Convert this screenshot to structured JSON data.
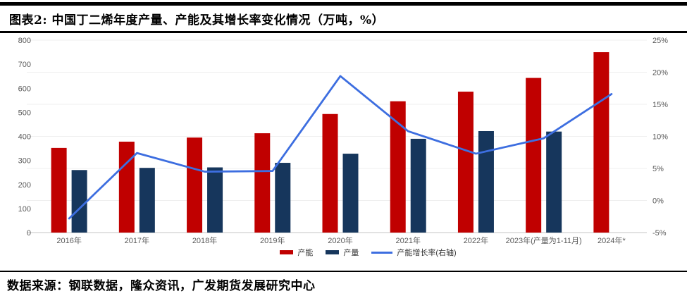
{
  "header": {
    "title": "图表2: 中国丁二烯年度产量、产能及其增长率变化情况（万吨，%）"
  },
  "footer": {
    "source": "数据来源：钢联数据，隆众资讯，广发期货发展研究中心"
  },
  "chart_data": {
    "type": "bar+line combo",
    "categories": [
      "2016年",
      "2017年",
      "2018年",
      "2019年",
      "2020年",
      "2021年",
      "2022年",
      "2023年(产量为1-11月)",
      "2024年*"
    ],
    "series": [
      {
        "name": "产能",
        "type": "bar",
        "axis": "left",
        "color": "#C00000",
        "values": [
          352,
          378,
          395,
          413,
          493,
          546,
          586,
          643,
          750
        ]
      },
      {
        "name": "产量",
        "type": "bar",
        "axis": "left",
        "color": "#16365C",
        "values": [
          260,
          269,
          271,
          290,
          328,
          390,
          422,
          420,
          null
        ]
      },
      {
        "name": "产能增长率(右轴)",
        "type": "line",
        "axis": "right",
        "color": "#3D6EE0",
        "values": [
          -2.8,
          7.4,
          4.5,
          4.6,
          19.4,
          10.8,
          7.3,
          9.7,
          16.6
        ]
      }
    ],
    "left_axis": {
      "min": 0,
      "max": 800,
      "step": 100,
      "tick_labels": [
        "0",
        "100",
        "200",
        "300",
        "400",
        "500",
        "600",
        "700",
        "800"
      ]
    },
    "right_axis": {
      "min": -5,
      "max": 25,
      "step": 5,
      "tick_labels": [
        "-5%",
        "0%",
        "5%",
        "10%",
        "15%",
        "20%",
        "25%"
      ]
    },
    "grid": true,
    "legend_position": "bottom",
    "axis_text_color": "#595959",
    "gridline_color": "#EFEFEF",
    "axis_line_color": "#C6C6C6"
  }
}
